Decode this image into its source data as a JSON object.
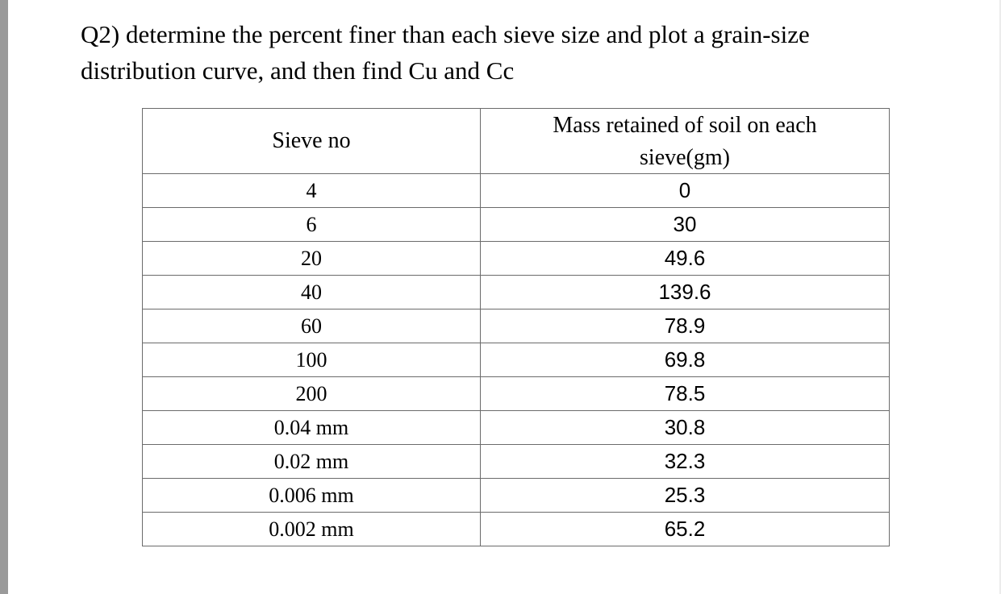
{
  "question": {
    "line1": "Q2) determine the percent finer than each sieve size and plot a grain-size",
    "line2": "distribution curve, and then find Cu and Cc"
  },
  "table": {
    "headers": {
      "sieve": "Sieve no",
      "mass_line1": "Mass retained of soil on each",
      "mass_line2": "sieve(gm)"
    },
    "rows": [
      {
        "sieve": "4",
        "mass": "0"
      },
      {
        "sieve": "6",
        "mass": "30"
      },
      {
        "sieve": "20",
        "mass": "49.6"
      },
      {
        "sieve": "40",
        "mass": "139.6"
      },
      {
        "sieve": "60",
        "mass": "78.9"
      },
      {
        "sieve": "100",
        "mass": "69.8"
      },
      {
        "sieve": "200",
        "mass": "78.5"
      },
      {
        "sieve": "0.04 mm",
        "mass": "30.8"
      },
      {
        "sieve": "0.02 mm",
        "mass": "32.3"
      },
      {
        "sieve": "0.006 mm",
        "mass": "25.3"
      },
      {
        "sieve": "0.002 mm",
        "mass": "65.2"
      }
    ]
  }
}
